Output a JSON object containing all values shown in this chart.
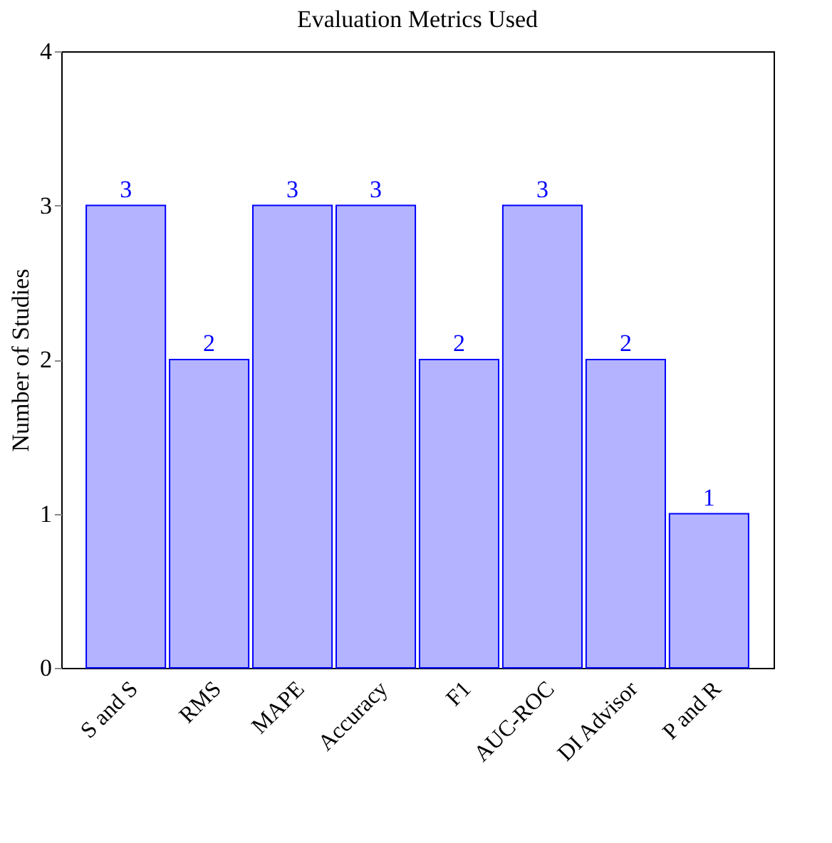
{
  "chart_data": {
    "type": "bar",
    "title": "Evaluation Metrics Used",
    "ylabel": "Number of Studies",
    "categories": [
      "S and S",
      "RMS",
      "MAPE",
      "Accuracy",
      "F1",
      "AUC-ROC",
      "DI Advisor",
      "P and R"
    ],
    "series": [
      {
        "color": "#b3b3ff",
        "values": [
          3,
          2,
          3,
          3,
          2,
          3,
          2,
          1
        ]
      }
    ],
    "ylim": [
      0,
      4
    ],
    "yticks": [
      0,
      1,
      2,
      3,
      4
    ],
    "grid": false,
    "data_labels": true
  }
}
